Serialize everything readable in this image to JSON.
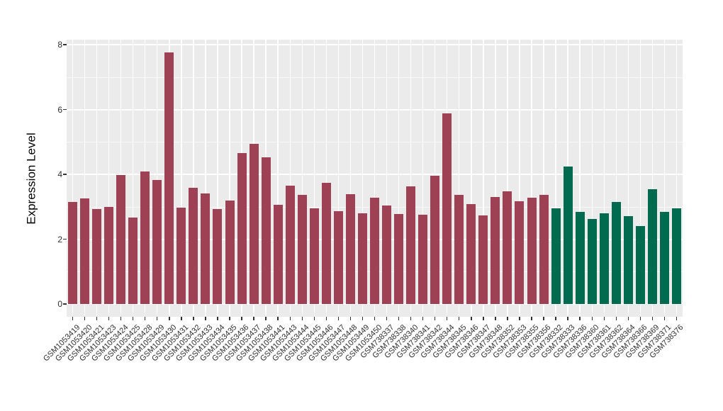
{
  "chart_data": {
    "type": "bar",
    "title": "",
    "xlabel": "",
    "ylabel": "Expression Level",
    "ylim": [
      0,
      8
    ],
    "yticks": [
      0,
      2,
      4,
      6,
      8
    ],
    "grid": true,
    "legend": false,
    "panel_background": "#EBEBEB",
    "gridline_color": "#FFFFFF",
    "tick_color": "#333333",
    "categories": [
      "GSM1053419",
      "GSM1053420",
      "GSM1053421",
      "GSM1053423",
      "GSM1053424",
      "GSM1053425",
      "GSM1053428",
      "GSM1053429",
      "GSM1053430",
      "GSM1053431",
      "GSM1053432",
      "GSM1053433",
      "GSM1053434",
      "GSM1053435",
      "GSM1053436",
      "GSM1053437",
      "GSM1053438",
      "GSM1053441",
      "GSM1053443",
      "GSM1053444",
      "GSM1053445",
      "GSM1053446",
      "GSM1053447",
      "GSM1053448",
      "GSM1053449",
      "GSM1053450",
      "GSM738337",
      "GSM738338",
      "GSM738340",
      "GSM738341",
      "GSM738342",
      "GSM738344",
      "GSM738345",
      "GSM738346",
      "GSM738347",
      "GSM738348",
      "GSM738352",
      "GSM738353",
      "GSM738355",
      "GSM738356",
      "GSM738332",
      "GSM738333",
      "GSM738336",
      "GSM738360",
      "GSM738361",
      "GSM738362",
      "GSM738364",
      "GSM738366",
      "GSM738369",
      "GSM738371",
      "GSM738376"
    ],
    "values": [
      3.15,
      3.25,
      2.92,
      3.0,
      3.98,
      2.67,
      4.08,
      3.82,
      7.75,
      2.98,
      3.58,
      3.42,
      2.92,
      3.2,
      4.65,
      4.93,
      4.52,
      3.05,
      3.65,
      3.37,
      2.95,
      3.73,
      2.87,
      3.38,
      2.8,
      3.28,
      3.03,
      2.78,
      3.62,
      2.76,
      3.96,
      5.88,
      3.37,
      3.08,
      2.74,
      3.3,
      3.48,
      3.18,
      3.27,
      3.36,
      2.95,
      4.25,
      2.85,
      2.62,
      2.8,
      3.15,
      2.72,
      2.4,
      3.55,
      2.85,
      2.95
    ],
    "group_colors": {
      "red_group": "#9E4154",
      "green_group": "#006B4E"
    },
    "green_start_index": 40
  }
}
